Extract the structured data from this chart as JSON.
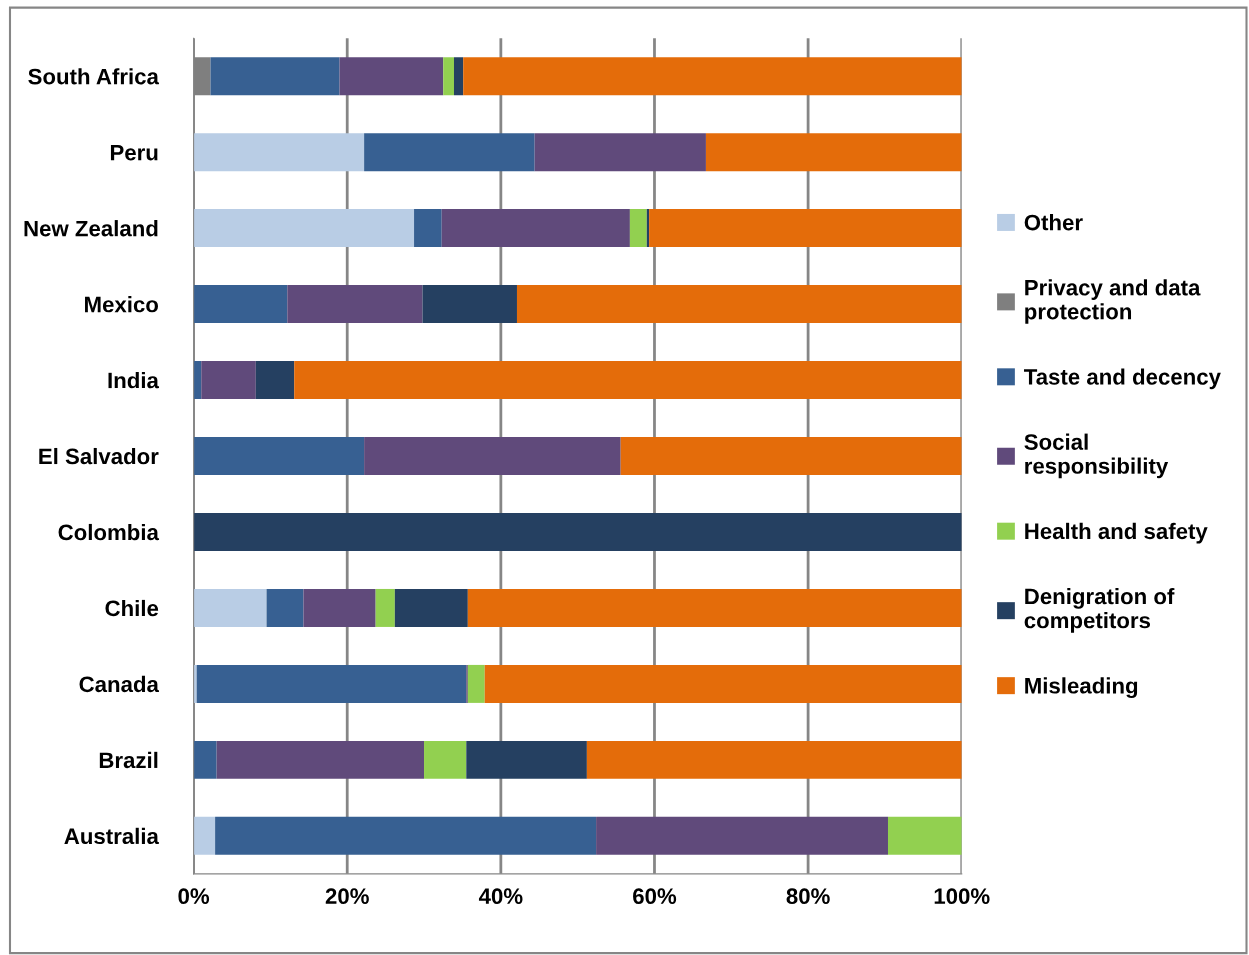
{
  "chart_data": {
    "type": "bar",
    "orientation": "horizontal",
    "stacked": true,
    "categories": [
      "South Africa",
      "Peru",
      "New Zealand",
      "Mexico",
      "India",
      "El Salvador",
      "Colombia",
      "Chile",
      "Canada",
      "Brazil",
      "Australia"
    ],
    "series": [
      {
        "name": "Other",
        "color": "#b9cde5",
        "values": [
          null,
          22.2,
          28.7,
          null,
          null,
          null,
          null,
          9.5,
          0.4,
          null,
          2.8
        ]
      },
      {
        "name": "Privacy and data protection",
        "color": "#7f7f7f",
        "values": [
          2.2,
          null,
          null,
          null,
          null,
          null,
          null,
          null,
          null,
          null,
          null
        ]
      },
      {
        "name": "Taste and decency",
        "color": "#376092",
        "values": [
          16.8,
          22.2,
          3.6,
          12.2,
          1.0,
          22.2,
          null,
          4.8,
          35.1,
          3.0,
          49.6
        ]
      },
      {
        "name": "Social responsibility",
        "color": "#604a7b",
        "values": [
          13.5,
          22.3,
          24.5,
          17.6,
          7.1,
          33.4,
          null,
          9.4,
          0.2,
          27.0,
          38.0
        ]
      },
      {
        "name": "Health and safety",
        "color": "#92d050",
        "values": [
          1.4,
          null,
          2.2,
          null,
          null,
          null,
          null,
          2.5,
          2.2,
          5.5,
          9.6
        ]
      },
      {
        "name": "Denigration of competitors",
        "color": "#254061",
        "values": [
          1.2,
          null,
          0.3,
          12.3,
          5.0,
          null,
          100,
          9.5,
          null,
          15.7,
          null
        ]
      },
      {
        "name": "Misleading",
        "color": "#e46c0a",
        "values": [
          64.9,
          33.3,
          40.7,
          57.9,
          86.9,
          44.4,
          null,
          64.3,
          62.1,
          48.8,
          null
        ]
      }
    ],
    "xlim": [
      0,
      100
    ],
    "xticks": [
      {
        "value": 0,
        "label": "0%"
      },
      {
        "value": 20,
        "label": "20%"
      },
      {
        "value": 40,
        "label": "40%"
      },
      {
        "value": 60,
        "label": "60%"
      },
      {
        "value": 80,
        "label": "80%"
      },
      {
        "value": 100,
        "label": "100%"
      }
    ],
    "grid": "x",
    "legend": "right"
  }
}
